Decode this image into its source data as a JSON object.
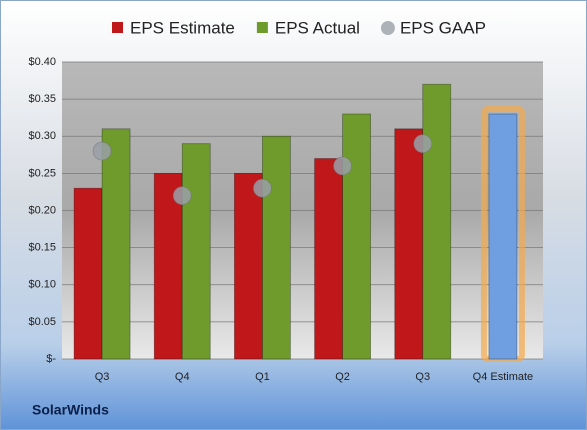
{
  "chart_data": {
    "type": "bar",
    "categories": [
      "Q3",
      "Q4",
      "Q1",
      "Q2",
      "Q3",
      "Q4 Estimate"
    ],
    "series": [
      {
        "name": "EPS Estimate",
        "color": "#c0171b",
        "values": [
          0.23,
          0.25,
          0.25,
          0.27,
          0.31,
          0.33
        ]
      },
      {
        "name": "EPS Actual",
        "color": "#6f9a2c",
        "values": [
          0.31,
          0.29,
          0.3,
          0.33,
          0.37,
          null
        ]
      },
      {
        "name": "EPS GAAP",
        "color": "#9aa0a8",
        "mark": "scatter",
        "values": [
          0.28,
          0.22,
          0.23,
          0.26,
          0.29,
          null
        ]
      }
    ],
    "highlight": {
      "category": 5,
      "color": "#6f9fe0",
      "glow": "#f5a94a"
    },
    "ylim": [
      0,
      0.4
    ],
    "yticks": [
      {
        "value": 0,
        "label": "$-"
      },
      {
        "value": 0.05,
        "label": "$0.05"
      },
      {
        "value": 0.1,
        "label": "$0.10"
      },
      {
        "value": 0.15,
        "label": "$0.15"
      },
      {
        "value": 0.2,
        "label": "$0.20"
      },
      {
        "value": 0.25,
        "label": "$0.25"
      },
      {
        "value": 0.3,
        "label": "$0.30"
      },
      {
        "value": 0.35,
        "label": "$0.35"
      },
      {
        "value": 0.4,
        "label": "$0.40"
      }
    ],
    "grid": true,
    "legend": "top",
    "footer": "SolarWinds"
  }
}
